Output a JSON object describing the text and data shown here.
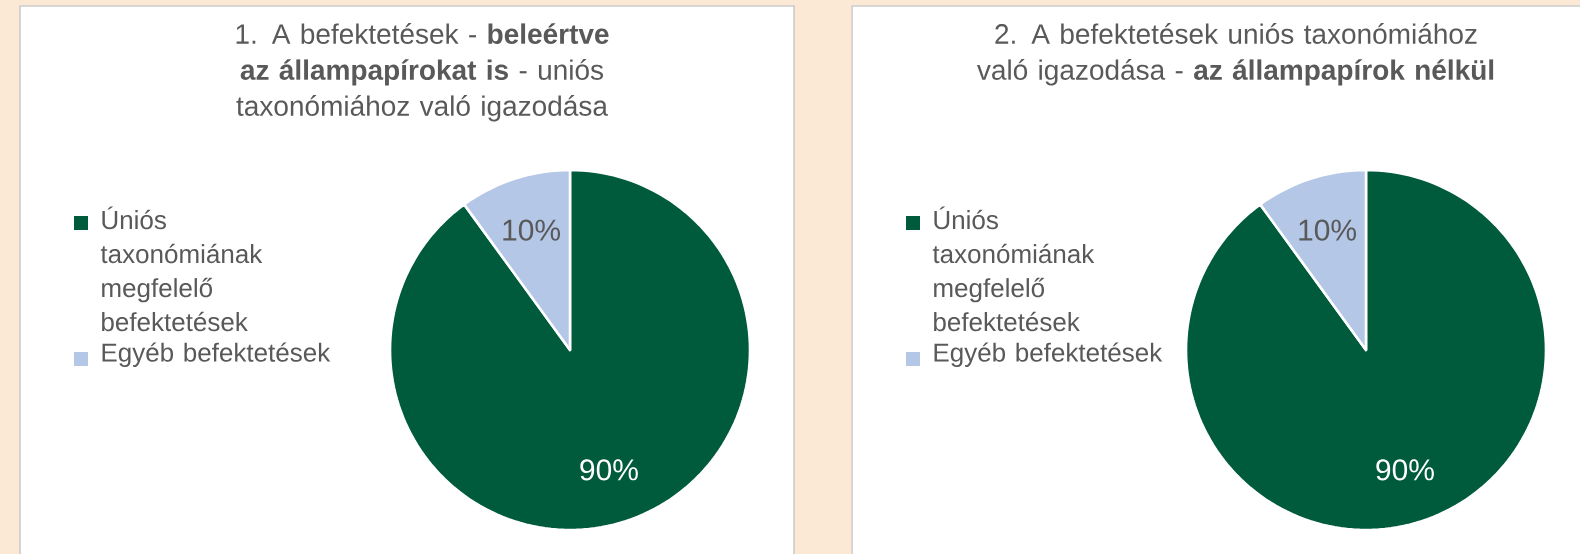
{
  "chart_data": [
    {
      "type": "pie",
      "title": "1. A befektetések - **beleértve az állampapírokat is** - uniós taxonómiához való igazodása",
      "categories": [
        "Úniós taxonómiának megfelelő befektetések",
        "Egyéb befektetések"
      ],
      "values": [
        90,
        10
      ],
      "colors": [
        "#005a3c",
        "#b4c7e7"
      ],
      "value_labels": [
        "90%",
        "10%"
      ],
      "legend": "left"
    },
    {
      "type": "pie",
      "title": "2. A befektetések uniós taxonómiához való igazodása - **az állampapírok nélkül**",
      "categories": [
        "Úniós taxonómiának megfelelő befektetések",
        "Egyéb befektetések"
      ],
      "values": [
        90,
        10
      ],
      "colors": [
        "#005a3c",
        "#b4c7e7"
      ],
      "value_labels": [
        "90%",
        "10%"
      ],
      "legend": "left"
    }
  ]
}
